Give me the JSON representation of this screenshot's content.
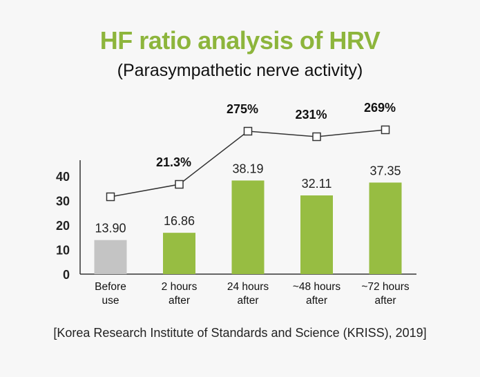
{
  "title": "HF ratio analysis of HRV",
  "subtitle": "(Parasympathetic nerve activity)",
  "source": "[Korea Research Institute of Standards and Science (KRISS), 2019]",
  "colors": {
    "title": "#8db53c",
    "bar_baseline": "#c4c4c4",
    "bar": "#97bd42",
    "line": "#333333",
    "axis": "#333333"
  },
  "chart_data": {
    "type": "bar",
    "title": "HF ratio analysis of HRV",
    "subtitle": "(Parasympathetic nerve activity)",
    "categories": [
      [
        "Before",
        "use"
      ],
      [
        "2 hours",
        "after"
      ],
      [
        "24 hours",
        "after"
      ],
      [
        "~48 hours",
        "after"
      ],
      [
        "~72 hours",
        "after"
      ]
    ],
    "values": [
      13.9,
      16.86,
      38.19,
      32.11,
      37.35
    ],
    "value_labels": [
      "13.90",
      "16.86",
      "38.19",
      "32.11",
      "37.35"
    ],
    "ylim": [
      0,
      45
    ],
    "yticks": [
      0,
      10,
      20,
      30,
      40
    ],
    "xlabel": "",
    "ylabel": "",
    "grid": false,
    "legend": "none",
    "overlay_line": {
      "type": "line",
      "marker": "square",
      "labels": [
        "",
        "21.3%",
        "275%",
        "231%",
        "269%"
      ],
      "relative_values": [
        0,
        21.3,
        275,
        231,
        269
      ]
    }
  }
}
